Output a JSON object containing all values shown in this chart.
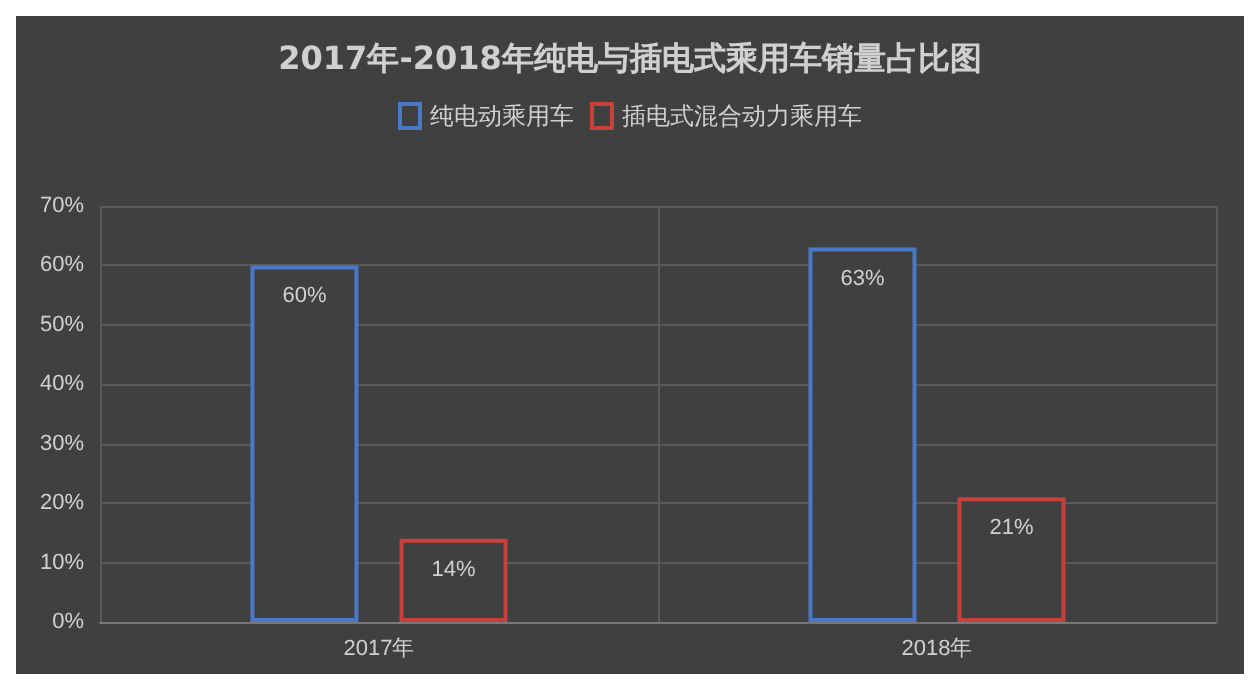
{
  "chart_data": {
    "type": "bar",
    "title": "2017年-2018年纯电与插电式乘用车销量占比图",
    "categories": [
      "2017年",
      "2018年"
    ],
    "series": [
      {
        "name": "纯电动乘用车",
        "color": "#4a78c8",
        "values": [
          60,
          63
        ],
        "value_labels": [
          "60%",
          "63%"
        ]
      },
      {
        "name": "插电式混合动力乘用车",
        "color": "#c8403a",
        "values": [
          14,
          21
        ],
        "value_labels": [
          "14%",
          "21%"
        ]
      }
    ],
    "ylim": [
      0,
      70
    ],
    "yticks": [
      {
        "value": 0,
        "label": "0%"
      },
      {
        "value": 10,
        "label": "10%"
      },
      {
        "value": 20,
        "label": "20%"
      },
      {
        "value": 30,
        "label": "30%"
      },
      {
        "value": 40,
        "label": "40%"
      },
      {
        "value": 50,
        "label": "50%"
      },
      {
        "value": 60,
        "label": "60%"
      },
      {
        "value": 70,
        "label": "70%"
      }
    ],
    "grid": true,
    "legend": "top"
  }
}
